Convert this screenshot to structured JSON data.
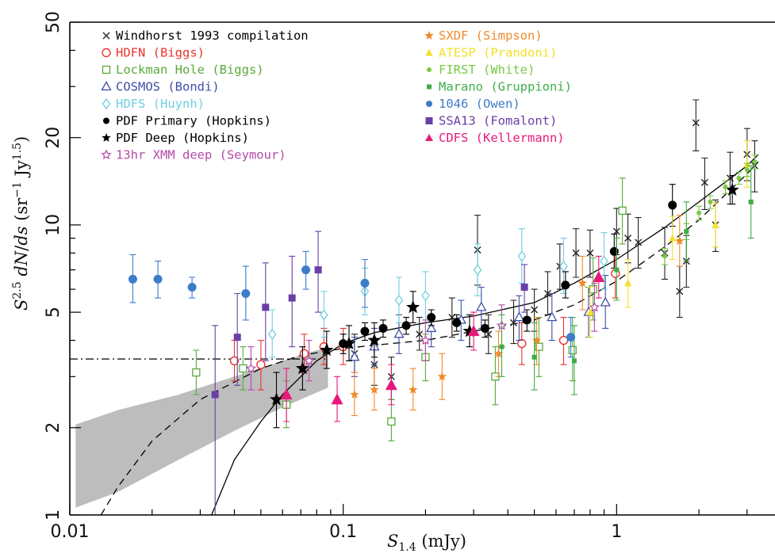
{
  "chart_data": {
    "type": "scatter",
    "x_scale": "log",
    "y_scale": "log",
    "xlim": [
      0.01,
      3.3
    ],
    "ylim": [
      1,
      50
    ],
    "xlabel": "S_1.4 (mJy)",
    "ylabel": "S^2.5 dN/ds (sr^-1 Jy^1.5)",
    "x_ticks": [
      {
        "value": 0.01,
        "label": "0.01"
      },
      {
        "value": 0.1,
        "label": "0.1"
      },
      {
        "value": 1,
        "label": "1"
      }
    ],
    "y_ticks": [
      {
        "value": 1,
        "label": "1"
      },
      {
        "value": 2,
        "label": "2"
      },
      {
        "value": 5,
        "label": "5"
      },
      {
        "value": 10,
        "label": "10"
      },
      {
        "value": 20,
        "label": "20"
      },
      {
        "value": 50,
        "label": "50"
      }
    ],
    "legend_position": "top-left",
    "shaded_band": {
      "color": "#bdbdbd",
      "upper": [
        [
          0.0105,
          2.05
        ],
        [
          0.015,
          2.3
        ],
        [
          0.025,
          2.6
        ],
        [
          0.04,
          3.0
        ],
        [
          0.06,
          3.4
        ],
        [
          0.08,
          3.7
        ],
        [
          0.088,
          3.75
        ]
      ],
      "lower": [
        [
          0.088,
          2.75
        ],
        [
          0.06,
          2.35
        ],
        [
          0.04,
          1.95
        ],
        [
          0.025,
          1.55
        ],
        [
          0.015,
          1.2
        ],
        [
          0.0105,
          1.06
        ]
      ]
    },
    "curves": [
      {
        "style": "solid",
        "points": [
          [
            0.033,
            1.0
          ],
          [
            0.04,
            1.55
          ],
          [
            0.05,
            2.1
          ],
          [
            0.06,
            2.6
          ],
          [
            0.07,
            3.0
          ],
          [
            0.08,
            3.4
          ],
          [
            0.1,
            3.9
          ],
          [
            0.13,
            4.25
          ],
          [
            0.2,
            4.6
          ],
          [
            0.3,
            4.85
          ],
          [
            0.5,
            5.4
          ],
          [
            0.7,
            6.3
          ],
          [
            1.0,
            7.6
          ],
          [
            1.5,
            9.8
          ],
          [
            2.0,
            12.0
          ],
          [
            3.0,
            16.0
          ],
          [
            3.3,
            17.5
          ]
        ]
      },
      {
        "style": "dashed",
        "points": [
          [
            0.013,
            1.0
          ],
          [
            0.015,
            1.25
          ],
          [
            0.02,
            1.8
          ],
          [
            0.03,
            2.5
          ],
          [
            0.05,
            3.2
          ],
          [
            0.07,
            3.55
          ],
          [
            0.1,
            3.75
          ],
          [
            0.15,
            3.9
          ],
          [
            0.2,
            4.0
          ],
          [
            0.3,
            4.3
          ],
          [
            0.5,
            4.7
          ],
          [
            0.7,
            5.3
          ],
          [
            1.0,
            6.4
          ],
          [
            1.5,
            8.4
          ],
          [
            2.0,
            10.4
          ],
          [
            3.0,
            15.0
          ],
          [
            3.3,
            16.5
          ]
        ]
      },
      {
        "style": "dashdot",
        "points": [
          [
            0.01,
            3.45
          ],
          [
            0.086,
            3.45
          ]
        ]
      }
    ],
    "series": [
      {
        "name": "Windhorst 1993 compilation",
        "marker": "x",
        "color": "#222222",
        "points": [
          [
            0.11,
            3.6,
            3.1,
            4.2
          ],
          [
            0.13,
            3.3,
            2.8,
            3.9
          ],
          [
            0.15,
            3.0,
            2.5,
            3.5
          ],
          [
            0.19,
            4.2,
            3.7,
            4.8
          ],
          [
            0.25,
            4.8,
            4.1,
            5.6
          ],
          [
            0.31,
            8.2,
            6.2,
            10.8
          ],
          [
            0.34,
            4.2,
            3.6,
            4.9
          ],
          [
            0.42,
            4.6,
            3.9,
            5.5
          ],
          [
            0.5,
            5.1,
            4.3,
            6.0
          ],
          [
            0.56,
            5.8,
            4.9,
            6.9
          ],
          [
            0.62,
            7.2,
            6.0,
            8.6
          ],
          [
            0.71,
            8.0,
            6.6,
            9.7
          ],
          [
            0.8,
            8.0,
            6.6,
            9.6
          ],
          [
            1.0,
            9.5,
            7.9,
            11.4
          ],
          [
            1.1,
            9.0,
            7.4,
            10.9
          ],
          [
            1.2,
            8.7,
            7.1,
            10.6
          ],
          [
            1.5,
            8.0,
            6.5,
            9.8
          ],
          [
            1.7,
            5.9,
            4.8,
            7.2
          ],
          [
            1.8,
            7.5,
            6.1,
            9.2
          ],
          [
            1.95,
            22.5,
            18.0,
            27.0
          ],
          [
            2.1,
            14.0,
            11.3,
            17.0
          ],
          [
            2.3,
            10.0,
            8.1,
            12.2
          ],
          [
            2.6,
            14.5,
            11.8,
            17.8
          ],
          [
            3.0,
            17.5,
            14.2,
            21.5
          ],
          [
            3.2,
            16.0,
            13.0,
            19.5
          ]
        ]
      },
      {
        "name": "HDFN (Biggs)",
        "marker": "circle-open",
        "color": "#e8352e",
        "points": [
          [
            0.04,
            3.4,
            2.9,
            4.0
          ],
          [
            0.05,
            3.3,
            2.7,
            4.0
          ],
          [
            0.072,
            3.6,
            3.1,
            4.2
          ],
          [
            0.085,
            3.8,
            3.3,
            4.4
          ],
          [
            0.1,
            3.8,
            3.3,
            4.4
          ],
          [
            0.45,
            3.9,
            3.3,
            4.6
          ],
          [
            0.64,
            4.0,
            3.3,
            4.8
          ],
          [
            0.99,
            6.8,
            5.6,
            8.2
          ]
        ]
      },
      {
        "name": "Lockman Hole (Biggs)",
        "marker": "square-open",
        "color": "#5aaa3c",
        "points": [
          [
            0.029,
            3.1,
            2.6,
            3.7
          ],
          [
            0.043,
            3.2,
            2.7,
            3.8
          ],
          [
            0.062,
            2.4,
            2.0,
            2.9
          ],
          [
            0.15,
            2.1,
            1.8,
            2.5
          ],
          [
            0.2,
            3.5,
            2.9,
            4.2
          ],
          [
            0.36,
            3.0,
            2.4,
            3.8
          ],
          [
            0.52,
            3.8,
            3.0,
            4.8
          ],
          [
            0.69,
            3.7,
            2.9,
            4.8
          ],
          [
            0.82,
            6.0,
            4.7,
            7.7
          ],
          [
            1.05,
            11.2,
            8.6,
            14.5
          ]
        ]
      },
      {
        "name": "COSMOS (Bondi)",
        "marker": "triangle-open",
        "color": "#3e4fa8",
        "points": [
          [
            0.11,
            3.5,
            3.0,
            4.1
          ],
          [
            0.13,
            3.8,
            3.3,
            4.4
          ],
          [
            0.16,
            4.2,
            3.6,
            4.9
          ],
          [
            0.21,
            4.4,
            3.8,
            5.1
          ],
          [
            0.27,
            4.7,
            4.0,
            5.5
          ],
          [
            0.32,
            5.2,
            4.4,
            6.1
          ],
          [
            0.44,
            4.8,
            4.0,
            5.7
          ],
          [
            0.58,
            4.8,
            4.0,
            5.8
          ],
          [
            0.79,
            5.0,
            4.1,
            6.1
          ],
          [
            0.91,
            5.4,
            4.4,
            6.7
          ]
        ]
      },
      {
        "name": "HDFS (Huynh)",
        "marker": "diamond-open",
        "color": "#6fcfe0",
        "points": [
          [
            0.055,
            4.2,
            3.5,
            5.1
          ],
          [
            0.085,
            4.9,
            4.1,
            5.9
          ],
          [
            0.12,
            5.9,
            4.9,
            7.1
          ],
          [
            0.16,
            5.5,
            4.6,
            6.6
          ],
          [
            0.2,
            5.7,
            4.7,
            6.9
          ],
          [
            0.31,
            7.0,
            5.7,
            8.6
          ],
          [
            0.45,
            7.8,
            6.3,
            9.7
          ],
          [
            0.64,
            7.2,
            5.8,
            9.0
          ],
          [
            0.9,
            7.5,
            6.0,
            9.4
          ]
        ]
      },
      {
        "name": "PDF Primary (Hopkins)",
        "marker": "circle-filled",
        "color": "#000000",
        "points": [
          [
            0.1,
            3.9,
            3.6,
            4.2
          ],
          [
            0.12,
            4.3,
            4.0,
            4.6
          ],
          [
            0.14,
            4.4,
            4.1,
            4.7
          ],
          [
            0.17,
            4.5,
            4.2,
            4.8
          ],
          [
            0.21,
            4.8,
            4.5,
            5.1
          ],
          [
            0.26,
            4.6,
            4.3,
            4.9
          ],
          [
            0.33,
            4.4,
            4.1,
            4.7
          ],
          [
            0.47,
            4.7,
            4.3,
            5.1
          ],
          [
            0.65,
            6.2,
            5.6,
            6.9
          ],
          [
            0.98,
            8.1,
            7.1,
            9.3
          ],
          [
            1.6,
            11.7,
            9.9,
            13.8
          ]
        ]
      },
      {
        "name": "PDF Deep (Hopkins)",
        "marker": "star",
        "color": "#000000",
        "points": [
          [
            0.057,
            2.5,
            2.0,
            3.1
          ],
          [
            0.071,
            3.2,
            2.7,
            3.8
          ],
          [
            0.087,
            3.7,
            3.2,
            4.3
          ],
          [
            0.105,
            3.9,
            3.4,
            4.5
          ],
          [
            0.13,
            4.0,
            3.5,
            4.6
          ],
          [
            0.18,
            5.2,
            4.6,
            5.9
          ],
          [
            0.29,
            4.3,
            3.8,
            4.9
          ],
          [
            2.65,
            13.2,
            11.8,
            14.8
          ]
        ]
      },
      {
        "name": "13hr XMM deep (Seymour)",
        "marker": "star-open",
        "color": "#b44aa8",
        "points": [
          [
            0.046,
            3.2,
            2.7,
            3.8
          ],
          [
            0.075,
            3.4,
            2.9,
            4.0
          ],
          [
            0.2,
            4.0,
            3.4,
            4.7
          ],
          [
            0.38,
            4.5,
            3.8,
            5.3
          ],
          [
            0.83,
            5.2,
            4.3,
            6.3
          ]
        ]
      },
      {
        "name": "SXDF (Simpson)",
        "marker": "star-filled-small",
        "color": "#f08a2a",
        "points": [
          [
            0.11,
            2.6,
            2.2,
            3.1
          ],
          [
            0.13,
            2.7,
            2.3,
            3.2
          ],
          [
            0.18,
            2.7,
            2.3,
            3.2
          ],
          [
            0.23,
            3.0,
            2.5,
            3.6
          ],
          [
            0.37,
            3.6,
            3.0,
            4.3
          ],
          [
            0.51,
            4.0,
            3.3,
            4.8
          ],
          [
            0.75,
            6.3,
            5.1,
            7.8
          ],
          [
            1.7,
            8.8,
            7.2,
            10.8
          ]
        ]
      },
      {
        "name": "ATESP (Prandoni)",
        "marker": "triangle-filled-small",
        "color": "#f5e02a",
        "points": [
          [
            0.8,
            5.0,
            4.1,
            6.1
          ],
          [
            1.1,
            6.3,
            5.2,
            7.6
          ],
          [
            1.6,
            9.0,
            7.6,
            10.7
          ],
          [
            2.3,
            10.0,
            8.4,
            11.9
          ],
          [
            3.0,
            16.2,
            13.5,
            19.5
          ]
        ]
      },
      {
        "name": "FIRST (White)",
        "marker": "dot-filled",
        "color": "#7ac943",
        "points": [
          [
            1.5,
            7.8,
            7.3,
            8.3
          ],
          [
            1.8,
            9.5,
            8.9,
            10.1
          ],
          [
            2.0,
            11.0,
            10.4,
            11.6
          ],
          [
            2.2,
            12.0,
            11.4,
            12.6
          ],
          [
            2.5,
            13.5,
            12.8,
            14.2
          ],
          [
            2.8,
            14.5,
            13.8,
            15.2
          ],
          [
            3.0,
            15.5,
            14.7,
            16.3
          ],
          [
            3.2,
            16.5,
            15.6,
            17.4
          ]
        ]
      },
      {
        "name": "Marano (Gruppioni)",
        "marker": "square-filled-small",
        "color": "#3fae49",
        "points": [
          [
            0.38,
            3.8,
            3.0,
            4.9
          ],
          [
            0.5,
            3.5,
            2.7,
            4.6
          ],
          [
            0.7,
            3.4,
            2.6,
            4.5
          ],
          [
            1.0,
            7.0,
            5.5,
            9.0
          ],
          [
            1.8,
            9.5,
            7.5,
            12.0
          ],
          [
            3.1,
            12.0,
            9.0,
            16.0
          ]
        ]
      },
      {
        "name": "1046 (Owen)",
        "marker": "circle-filled",
        "color": "#3d7cc9",
        "points": [
          [
            0.017,
            6.5,
            5.4,
            7.9
          ],
          [
            0.021,
            6.5,
            5.6,
            7.5
          ],
          [
            0.028,
            6.1,
            5.6,
            6.6
          ],
          [
            0.044,
            5.8,
            4.7,
            7.2
          ],
          [
            0.073,
            7.0,
            6.0,
            8.1
          ],
          [
            0.12,
            6.3,
            5.2,
            7.6
          ],
          [
            0.68,
            4.1,
            3.5,
            4.8
          ]
        ]
      },
      {
        "name": "SSA13 (Fomalont)",
        "marker": "square-filled",
        "color": "#6a3fa5",
        "points": [
          [
            0.034,
            2.6,
            1.0,
            4.5
          ],
          [
            0.041,
            4.1,
            2.8,
            5.8
          ],
          [
            0.052,
            5.2,
            3.4,
            7.4
          ],
          [
            0.065,
            5.6,
            3.8,
            7.8
          ],
          [
            0.081,
            7.0,
            5.0,
            9.5
          ],
          [
            0.46,
            6.1,
            5.0,
            7.3
          ]
        ]
      },
      {
        "name": "CDFS (Kellermann)",
        "marker": "triangle-filled",
        "color": "#e8197a",
        "points": [
          [
            0.062,
            2.6,
            2.1,
            3.2
          ],
          [
            0.095,
            2.5,
            2.1,
            3.0
          ],
          [
            0.15,
            2.8,
            2.4,
            3.3
          ],
          [
            0.3,
            4.3,
            3.7,
            5.0
          ],
          [
            0.86,
            6.6,
            5.6,
            7.8
          ]
        ]
      }
    ]
  }
}
